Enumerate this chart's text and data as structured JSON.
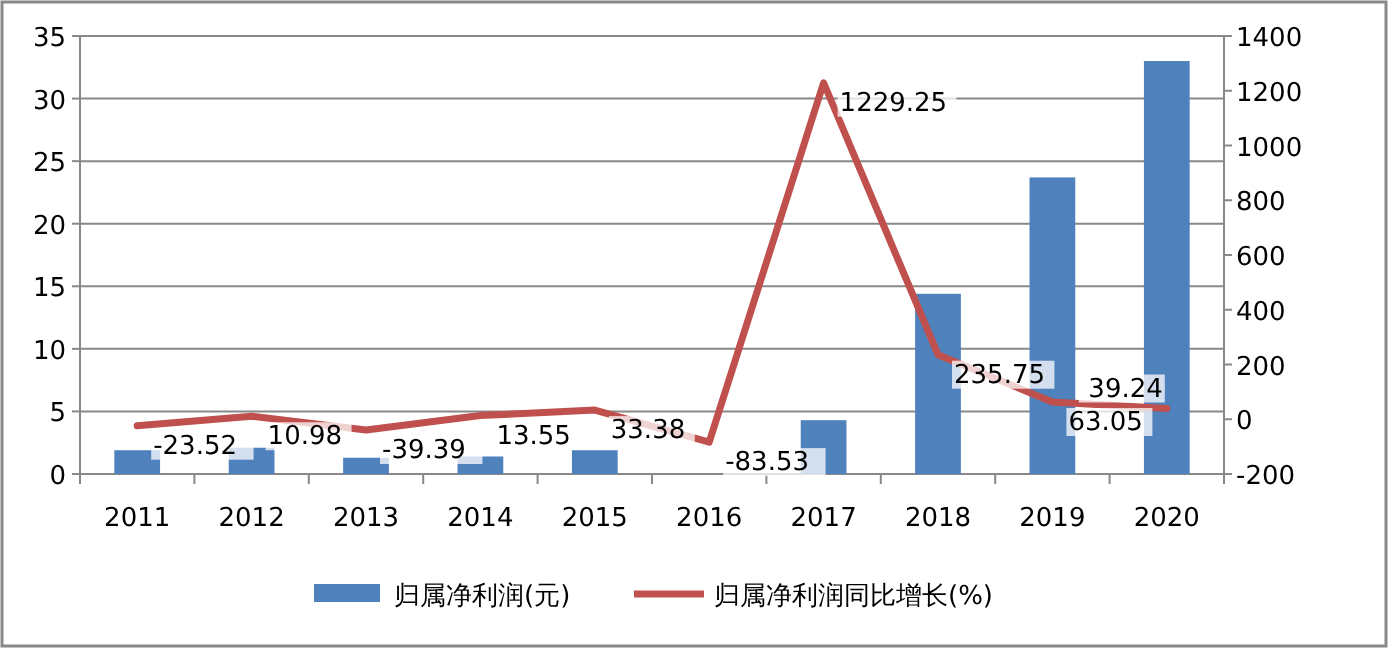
{
  "chart_data": {
    "type": "bar",
    "categories": [
      "2011",
      "2012",
      "2013",
      "2014",
      "2015",
      "2016",
      "2017",
      "2018",
      "2019",
      "2020"
    ],
    "series": [
      {
        "name": "归属净利润(元)",
        "color": "#4f81bd",
        "values": [
          1.9,
          2.1,
          1.3,
          1.4,
          1.9,
          null,
          4.3,
          14.4,
          23.7,
          33.0
        ]
      },
      {
        "name": "归属净利润同比增长(%)",
        "type": "line",
        "axis": "y2",
        "color": "#c0504d",
        "values": [
          -23.52,
          10.98,
          -39.39,
          13.55,
          33.38,
          -83.53,
          1229.25,
          235.75,
          63.05,
          39.24
        ],
        "data_labels": true
      }
    ],
    "ylim": [
      0,
      35
    ],
    "yticks": [
      0,
      5,
      10,
      15,
      20,
      25,
      30,
      35
    ],
    "y2lim": [
      -200,
      1400
    ],
    "y2ticks": [
      -200,
      0,
      200,
      400,
      600,
      800,
      1000,
      1200,
      1400
    ],
    "grid": "y",
    "legend": "bottom",
    "marker": "none",
    "line_style": "solid"
  }
}
